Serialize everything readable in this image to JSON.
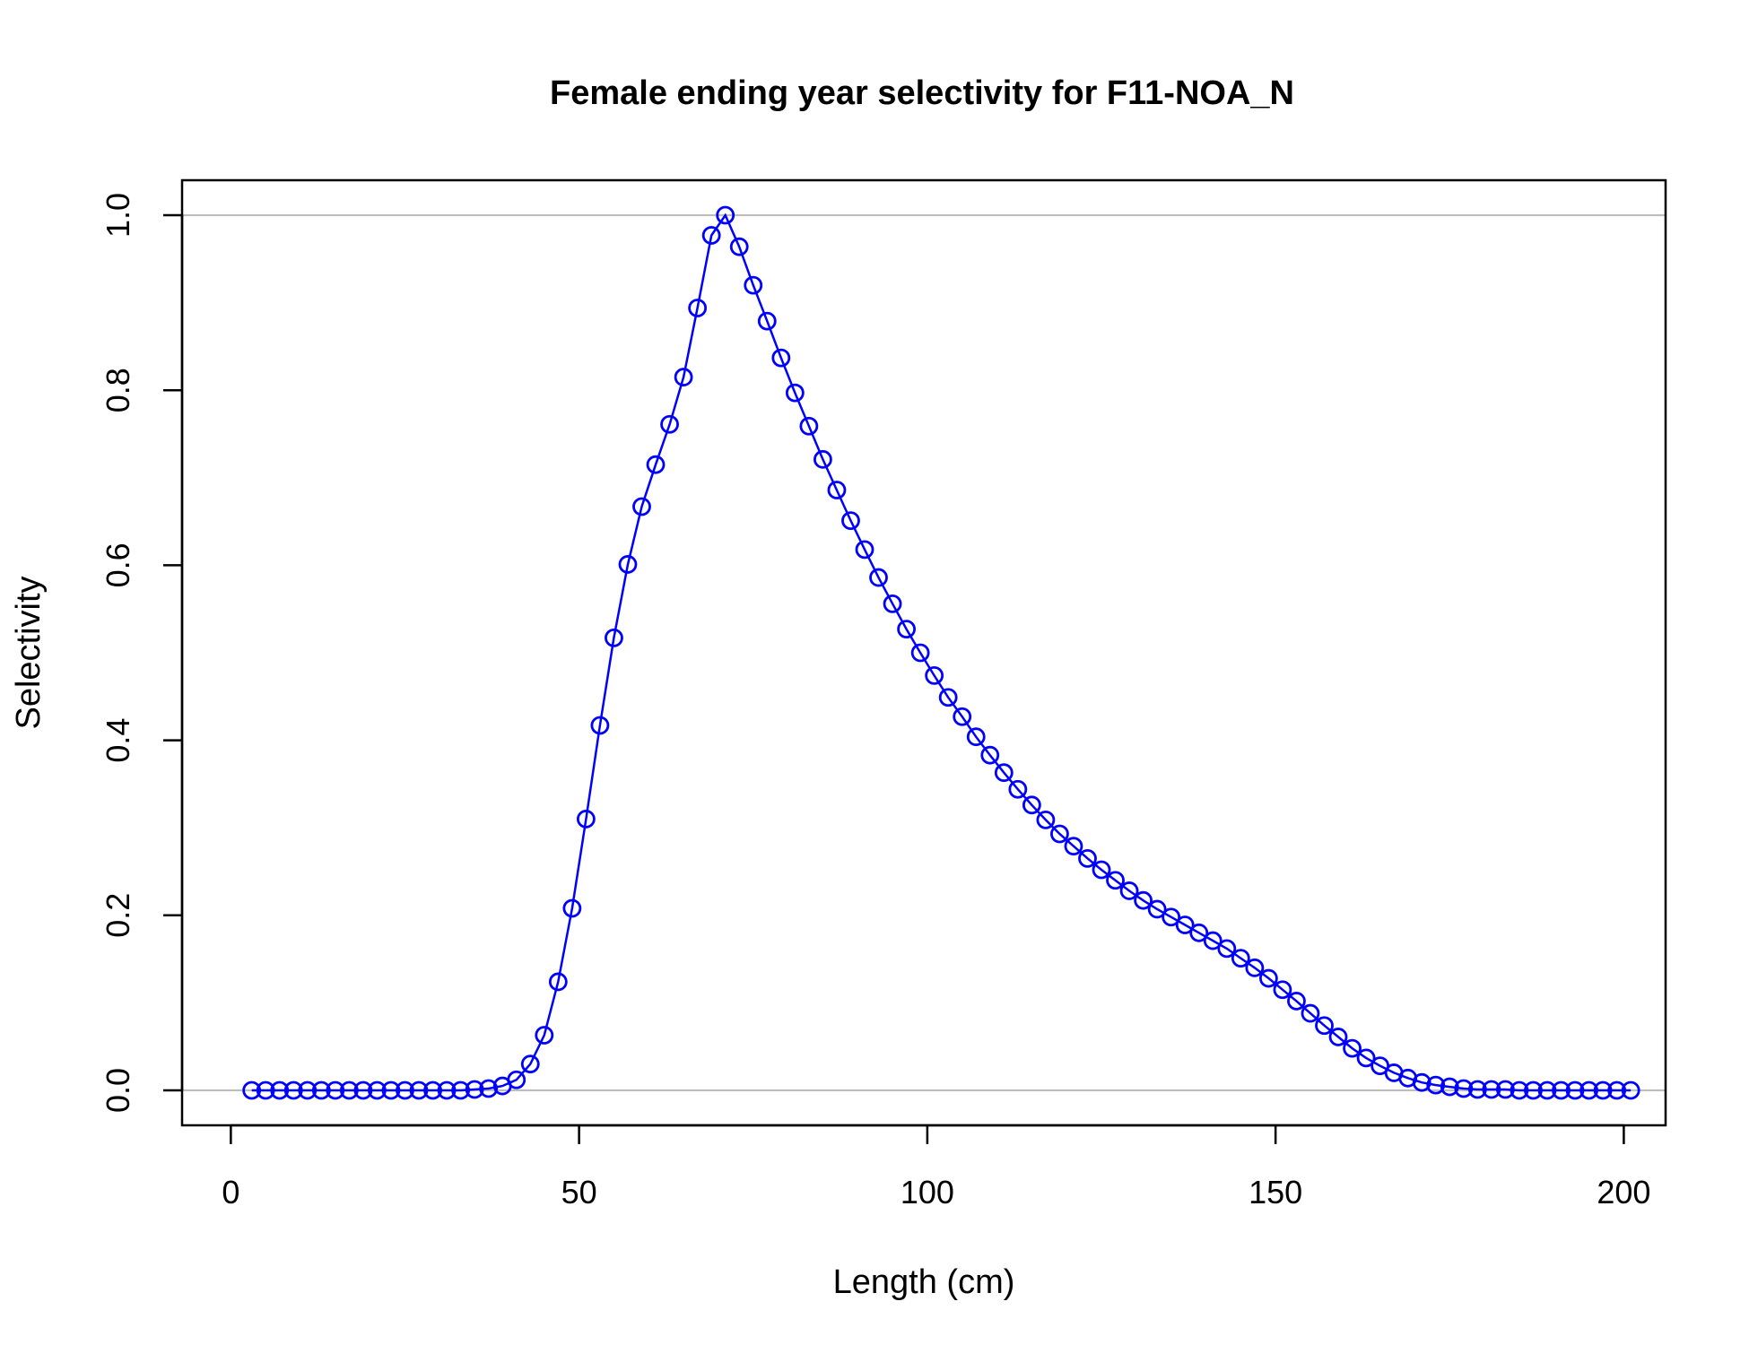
{
  "chart_data": {
    "type": "line",
    "title": "Female ending year selectivity for F11-NOA_N",
    "xlabel": "Length (cm)",
    "ylabel": "Selectivity",
    "xlim": [
      -7,
      206
    ],
    "ylim": [
      -0.04,
      1.04
    ],
    "xticks": [
      0,
      50,
      100,
      150,
      200
    ],
    "yticks": [
      0.0,
      0.2,
      0.4,
      0.6,
      0.8,
      1.0
    ],
    "xtick_labels": [
      "0",
      "50",
      "100",
      "150",
      "200"
    ],
    "ytick_labels": [
      "0.0",
      "0.2",
      "0.4",
      "0.6",
      "0.8",
      "1.0"
    ],
    "reference_lines_y": [
      0,
      1
    ],
    "grid": false,
    "series": [
      {
        "color": "#0000ff",
        "marker": "open-circle",
        "x": [
          3,
          5,
          7,
          9,
          11,
          13,
          15,
          17,
          19,
          21,
          23,
          25,
          27,
          29,
          31,
          33,
          35,
          37,
          39,
          41,
          43,
          45,
          47,
          49,
          51,
          53,
          55,
          57,
          59,
          61,
          63,
          65,
          67,
          69,
          71,
          73,
          75,
          77,
          79,
          81,
          83,
          85,
          87,
          89,
          91,
          93,
          95,
          97,
          99,
          101,
          103,
          105,
          107,
          109,
          111,
          113,
          115,
          117,
          119,
          121,
          123,
          125,
          127,
          129,
          131,
          133,
          135,
          137,
          139,
          141,
          143,
          145,
          147,
          149,
          151,
          153,
          155,
          157,
          159,
          161,
          163,
          165,
          167,
          169,
          171,
          173,
          175,
          177,
          179,
          181,
          183,
          185,
          187,
          189,
          191,
          193,
          195,
          197,
          199,
          201
        ],
        "y": [
          0,
          0,
          0,
          0,
          0,
          0,
          0,
          0,
          0,
          0,
          0,
          0,
          0,
          0,
          0,
          0,
          0.001,
          0.002,
          0.005,
          0.012,
          0.03,
          0.063,
          0.124,
          0.208,
          0.31,
          0.417,
          0.517,
          0.601,
          0.667,
          0.715,
          0.761,
          0.815,
          0.894,
          0.977,
          1.0,
          0.964,
          0.92,
          0.879,
          0.837,
          0.797,
          0.759,
          0.721,
          0.686,
          0.651,
          0.618,
          0.586,
          0.556,
          0.527,
          0.5,
          0.474,
          0.449,
          0.427,
          0.404,
          0.383,
          0.363,
          0.344,
          0.326,
          0.309,
          0.293,
          0.279,
          0.265,
          0.252,
          0.24,
          0.228,
          0.217,
          0.207,
          0.198,
          0.189,
          0.18,
          0.171,
          0.162,
          0.151,
          0.14,
          0.128,
          0.115,
          0.102,
          0.088,
          0.074,
          0.061,
          0.048,
          0.037,
          0.028,
          0.02,
          0.014,
          0.009,
          0.006,
          0.004,
          0.002,
          0.001,
          0.001,
          0.001,
          0,
          0,
          0,
          0,
          0,
          0,
          0,
          0,
          0
        ]
      }
    ]
  }
}
